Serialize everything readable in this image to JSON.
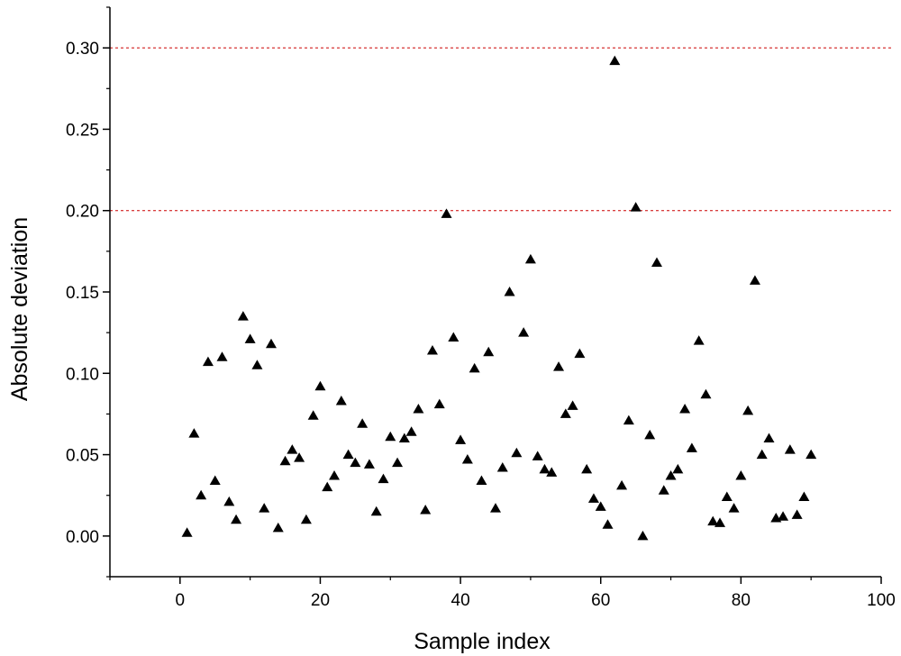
{
  "chart_data": {
    "type": "scatter",
    "title": "",
    "xlabel": "Sample index",
    "ylabel": "Absolute deviation",
    "xlim": [
      -10,
      100
    ],
    "ylim": [
      -0.025,
      0.325
    ],
    "x_ticks": [
      0,
      20,
      40,
      60,
      80,
      100
    ],
    "x_tick_labels": [
      "0",
      "20",
      "40",
      "60",
      "80",
      "100"
    ],
    "y_ticks": [
      0.0,
      0.05,
      0.1,
      0.15,
      0.2,
      0.25,
      0.3
    ],
    "y_tick_labels": [
      "0.00",
      "0.05",
      "0.10",
      "0.15",
      "0.20",
      "0.25",
      "0.30"
    ],
    "grid": false,
    "legend": "none",
    "marker": "filled-triangle",
    "marker_color": "#000000",
    "reference_lines": [
      {
        "y": 0.3,
        "style": "dashed",
        "color": "#cc0000"
      },
      {
        "y": 0.2,
        "style": "dashed",
        "color": "#cc0000"
      }
    ],
    "series": [
      {
        "x": [
          1,
          2,
          3,
          4,
          5,
          6,
          7,
          8,
          9,
          10,
          11,
          12,
          13,
          14,
          15,
          16,
          17,
          18,
          19,
          20,
          21,
          22,
          23,
          24,
          25,
          26,
          27,
          28,
          29,
          30,
          31,
          32,
          33,
          34,
          35,
          36,
          37,
          38,
          39,
          40,
          41,
          42,
          43,
          44,
          45,
          46,
          47,
          48,
          49,
          50,
          51,
          52,
          53,
          54,
          55,
          56,
          57,
          58,
          59,
          60,
          61,
          62,
          63,
          64,
          65,
          66,
          67,
          68,
          69,
          70,
          71,
          72,
          73,
          74,
          75,
          76,
          77,
          78,
          79,
          80,
          81,
          82,
          83,
          84,
          85,
          86,
          87,
          88,
          89,
          90
        ],
        "y": [
          0.002,
          0.063,
          0.025,
          0.107,
          0.034,
          0.11,
          0.021,
          0.01,
          0.135,
          0.121,
          0.105,
          0.017,
          0.118,
          0.005,
          0.046,
          0.053,
          0.048,
          0.01,
          0.074,
          0.092,
          0.03,
          0.037,
          0.083,
          0.05,
          0.045,
          0.069,
          0.044,
          0.015,
          0.035,
          0.061,
          0.045,
          0.06,
          0.064,
          0.078,
          0.016,
          0.114,
          0.081,
          0.198,
          0.122,
          0.059,
          0.047,
          0.103,
          0.034,
          0.113,
          0.017,
          0.042,
          0.15,
          0.051,
          0.125,
          0.17,
          0.049,
          0.041,
          0.039,
          0.104,
          0.075,
          0.08,
          0.112,
          0.041,
          0.023,
          0.018,
          0.007,
          0.292,
          0.031,
          0.071,
          0.202,
          0.0,
          0.062,
          0.168,
          0.028,
          0.037,
          0.041,
          0.078,
          0.054,
          0.12,
          0.087,
          0.009,
          0.008,
          0.024,
          0.017,
          0.037,
          0.077,
          0.157,
          0.05,
          0.06,
          0.011,
          0.012,
          0.053,
          0.013,
          0.024,
          0.05
        ]
      }
    ]
  }
}
